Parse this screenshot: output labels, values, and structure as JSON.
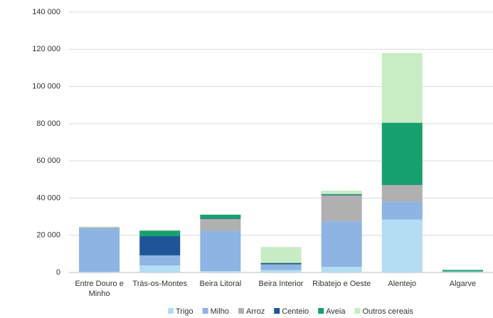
{
  "chart_data": {
    "type": "stacked-bar",
    "categories": [
      "Entre Douro e Minho",
      "Trás-os-Montes",
      "Beira Litoral",
      "Beira Interior",
      "Ribatejo e Oeste",
      "Alentejo",
      "Algarve"
    ],
    "series": [
      {
        "name": "Trigo",
        "color": "#b4dcf2",
        "values": [
          300,
          3800,
          700,
          1300,
          3000,
          28500,
          300
        ]
      },
      {
        "name": "Milho",
        "color": "#8db4e2",
        "values": [
          23500,
          5400,
          21800,
          2700,
          24500,
          9500,
          300
        ]
      },
      {
        "name": "Arroz",
        "color": "#b0b0b0",
        "values": [
          500,
          0,
          6200,
          400,
          14000,
          9000,
          0
        ]
      },
      {
        "name": "Centeio",
        "color": "#1f5597",
        "values": [
          0,
          10300,
          300,
          600,
          200,
          200,
          0
        ]
      },
      {
        "name": "Aveia",
        "color": "#17a06e",
        "values": [
          0,
          3000,
          2000,
          200,
          500,
          33300,
          700
        ]
      },
      {
        "name": "Outros cereais",
        "color": "#c8ecc4",
        "values": [
          300,
          300,
          400,
          8500,
          1800,
          37500,
          400
        ]
      }
    ],
    "ylim": [
      0,
      140000
    ],
    "yticks": [
      0,
      {
        "value": 20000,
        "label": "20 000"
      },
      {
        "value": 40000,
        "label": "40 000"
      },
      {
        "value": 60000,
        "label": "60 000"
      },
      {
        "value": 80000,
        "label": "80 000"
      },
      {
        "value": 100000,
        "label": "100 000"
      },
      {
        "value": 120000,
        "label": "120 000"
      },
      {
        "value": 140000,
        "label": "140 000"
      }
    ],
    "grid": true,
    "legend": "bottom"
  }
}
